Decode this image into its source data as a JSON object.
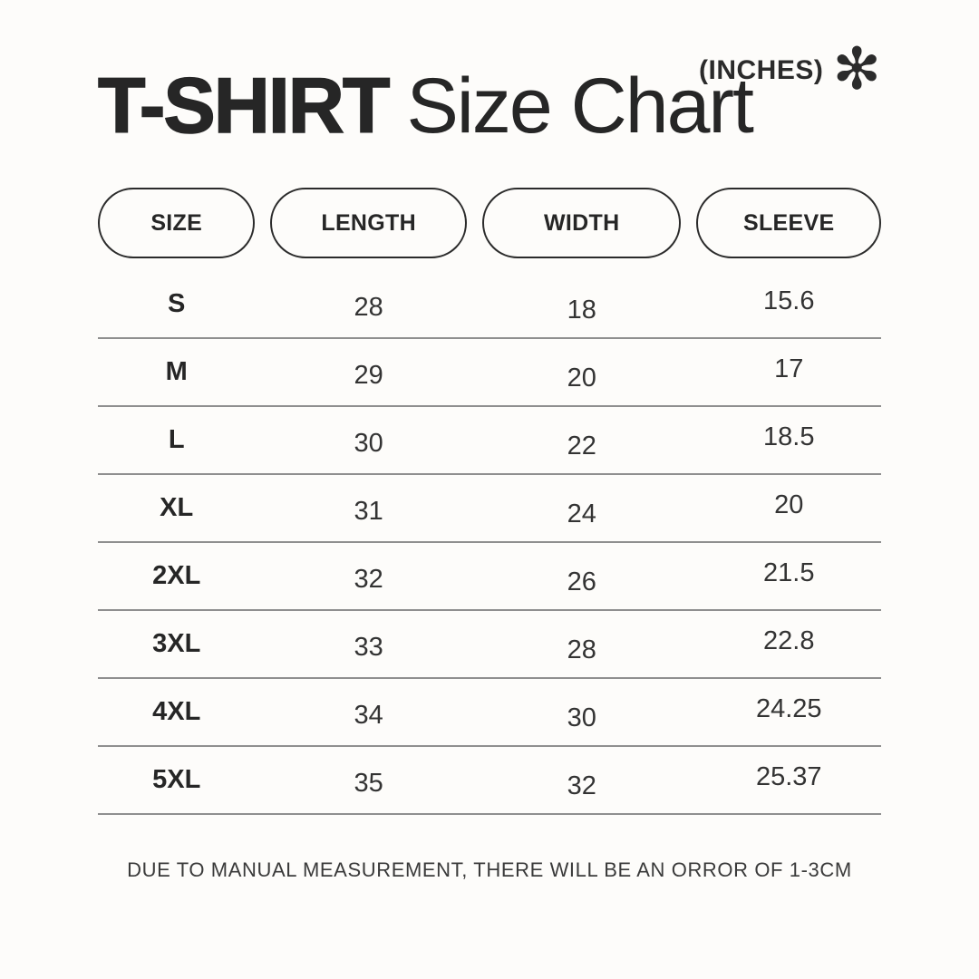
{
  "header": {
    "units_label": "(INCHES)",
    "asterisk_glyph": "✻",
    "title_bold": "T-SHIRT",
    "title_regular": "Size Chart"
  },
  "chart_data": {
    "type": "table",
    "title": "T-SHIRT Size Chart",
    "units": "(INCHES)",
    "columns": [
      "SIZE",
      "LENGTH",
      "WIDTH",
      "SLEEVE"
    ],
    "rows": [
      [
        "S",
        28,
        18,
        15.6
      ],
      [
        "M",
        29,
        20,
        17
      ],
      [
        "L",
        30,
        22,
        18.5
      ],
      [
        "XL",
        31,
        24,
        20
      ],
      [
        "2XL",
        32,
        26,
        21.5
      ],
      [
        "3XL",
        33,
        28,
        22.8
      ],
      [
        "4XL",
        34,
        30,
        24.25
      ],
      [
        "5XL",
        35,
        32,
        25.37
      ]
    ]
  },
  "footer": {
    "note": "DUE TO MANUAL MEASUREMENT, THERE WILL BE AN ORROR OF 1-3CM"
  },
  "colors": {
    "background": "#fdfcfa",
    "text": "#262626",
    "divider": "#8f8f8f",
    "pill_border": "#2b2b2b"
  }
}
